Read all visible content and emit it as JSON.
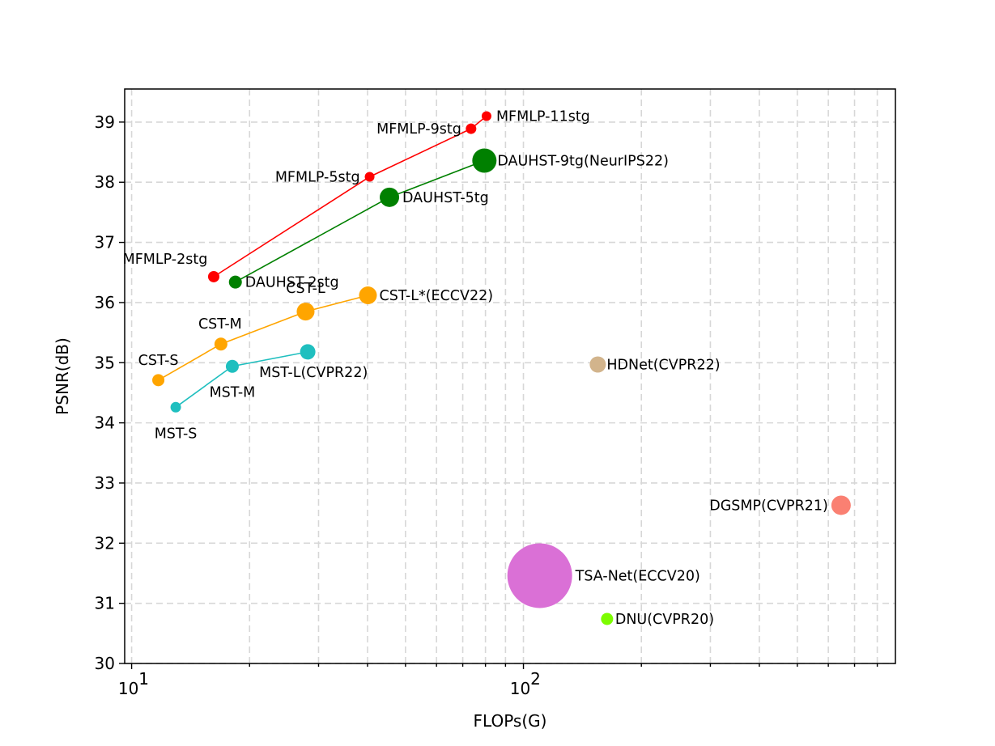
{
  "chart_data": {
    "type": "scatter",
    "title": "",
    "xlabel": "FLOPs(G)",
    "ylabel": "PSNR(dB)",
    "xscale": "log",
    "xlim": [
      9.6,
      890
    ],
    "ylim": [
      30,
      39.55
    ],
    "grid": true,
    "y_ticks": [
      "30",
      "31",
      "32",
      "33",
      "34",
      "35",
      "36",
      "37",
      "38",
      "39"
    ],
    "x_major_ticks": [
      {
        "value": 10,
        "base": "10",
        "exp": "1"
      },
      {
        "value": 100,
        "base": "10",
        "exp": "2"
      }
    ],
    "series": [
      {
        "name": "MFMLP",
        "color": "#ff0000",
        "connected": true,
        "points": [
          {
            "label": "MFMLP-2stg",
            "x": 16.2,
            "y": 36.43,
            "size": 7
          },
          {
            "label": "MFMLP-5stg",
            "x": 40.5,
            "y": 38.09,
            "size": 6
          },
          {
            "label": "MFMLP-9stg",
            "x": 73.5,
            "y": 38.89,
            "size": 6.5
          },
          {
            "label": "MFMLP-11stg",
            "x": 80.5,
            "y": 39.1,
            "size": 6
          }
        ]
      },
      {
        "name": "DAUHST",
        "color": "#008000",
        "connected": true,
        "points": [
          {
            "label": "DAUHST-2stg",
            "x": 18.4,
            "y": 36.34,
            "size": 8
          },
          {
            "label": "DAUHST-5tg",
            "x": 45.5,
            "y": 37.75,
            "size": 12
          },
          {
            "label": "DAUHST-9tg(NeurIPS22)",
            "x": 79.5,
            "y": 38.36,
            "size": 15
          }
        ]
      },
      {
        "name": "CST",
        "color": "#ffa500",
        "connected": true,
        "points": [
          {
            "label": "CST-S",
            "x": 11.7,
            "y": 34.71,
            "size": 7.5
          },
          {
            "label": "CST-M",
            "x": 16.9,
            "y": 35.31,
            "size": 8
          },
          {
            "label": "CST-L",
            "x": 27.8,
            "y": 35.85,
            "size": 11
          },
          {
            "label": "CST-L*(ECCV22)",
            "x": 40.1,
            "y": 36.12,
            "size": 11
          }
        ]
      },
      {
        "name": "MST",
        "color": "#1fbfbf",
        "connected": true,
        "points": [
          {
            "label": "MST-S",
            "x": 12.96,
            "y": 34.26,
            "size": 6.5
          },
          {
            "label": "MST-M",
            "x": 18.07,
            "y": 34.94,
            "size": 8
          },
          {
            "label": "MST-L(CVPR22)",
            "x": 28.15,
            "y": 35.18,
            "size": 9.5
          }
        ]
      },
      {
        "name": "HDNet(CVPR22)",
        "color": "#d2b48c",
        "connected": false,
        "points": [
          {
            "label": "HDNet(CVPR22)",
            "x": 154.8,
            "y": 34.97,
            "size": 10
          }
        ]
      },
      {
        "name": "DGSMP(CVPR21)",
        "color": "#fa8072",
        "connected": false,
        "points": [
          {
            "label": "DGSMP(CVPR21)",
            "x": 646.65,
            "y": 32.63,
            "size": 12
          }
        ]
      },
      {
        "name": "TSA-Net(ECCV20)",
        "color": "#da70d6",
        "connected": false,
        "points": [
          {
            "label": "TSA-Net(ECCV20)",
            "x": 110.06,
            "y": 31.46,
            "size": 40
          }
        ]
      },
      {
        "name": "DNU(CVPR20)",
        "color": "#7cfc00",
        "connected": false,
        "points": [
          {
            "label": "DNU(CVPR20)",
            "x": 163.48,
            "y": 30.74,
            "size": 7.5
          }
        ]
      }
    ]
  }
}
